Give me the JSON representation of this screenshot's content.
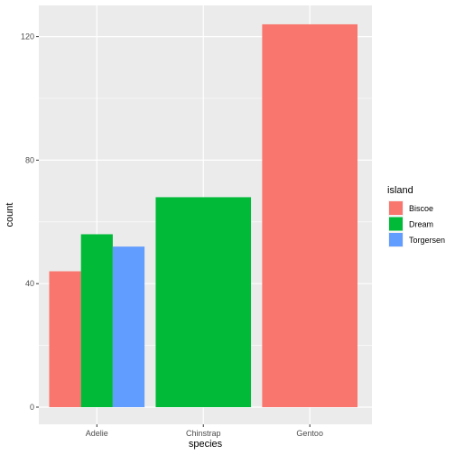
{
  "chart_data": {
    "type": "bar",
    "position": "dodge",
    "categories": [
      "Adelie",
      "Chinstrap",
      "Gentoo"
    ],
    "xlabel": "species",
    "ylabel": "count",
    "ylim": [
      0,
      130
    ],
    "yticks": [
      0,
      40,
      80,
      120
    ],
    "grid": true,
    "legend": {
      "title": "island",
      "placement": "right",
      "entries": [
        {
          "name": "Biscoe",
          "color": "#F8766D"
        },
        {
          "name": "Dream",
          "color": "#00BA38"
        },
        {
          "name": "Torgersen",
          "color": "#619CFF"
        }
      ]
    },
    "bars": [
      {
        "category": "Adelie",
        "island": "Biscoe",
        "value": 44
      },
      {
        "category": "Adelie",
        "island": "Dream",
        "value": 56
      },
      {
        "category": "Adelie",
        "island": "Torgersen",
        "value": 52
      },
      {
        "category": "Chinstrap",
        "island": "Dream",
        "value": 68
      },
      {
        "category": "Gentoo",
        "island": "Biscoe",
        "value": 124
      }
    ]
  }
}
